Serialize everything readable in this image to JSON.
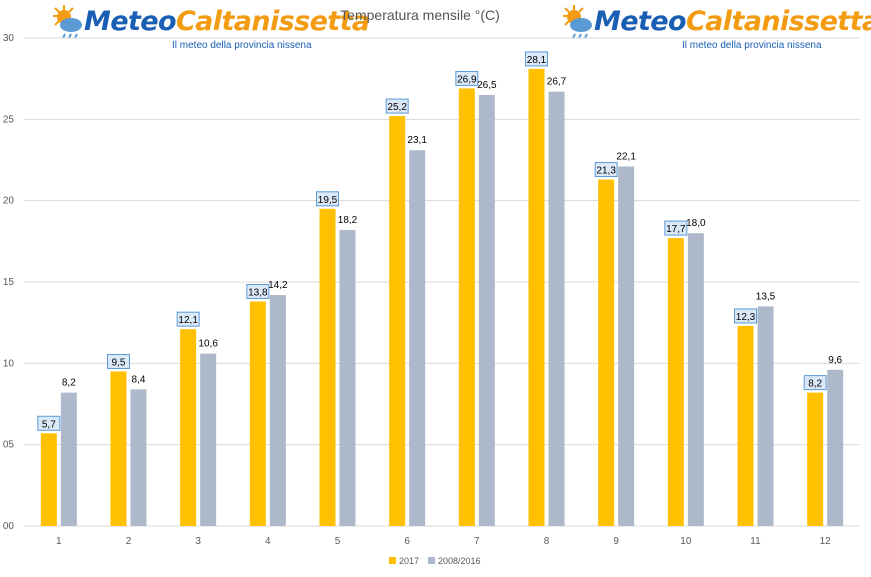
{
  "header": {
    "logo_name_part1": "Meteo",
    "logo_name_part2": "Caltanissetta",
    "logo_tagline": "Il meteo della provincia nissena",
    "logo_icon": "sun-cloud-icon"
  },
  "chart_data": {
    "type": "bar",
    "title": "Temperatura mensile °(C)",
    "xlabel": "",
    "ylabel": "",
    "categories": [
      "1",
      "2",
      "3",
      "4",
      "5",
      "6",
      "7",
      "8",
      "9",
      "10",
      "11",
      "12"
    ],
    "series": [
      {
        "name": "2017",
        "color": "#ffc000",
        "values": [
          5.7,
          9.5,
          12.1,
          13.8,
          19.5,
          25.2,
          26.9,
          28.1,
          21.3,
          17.7,
          12.3,
          8.2
        ],
        "labels": [
          "5,7",
          "9,5",
          "12,1",
          "13,8",
          "19,5",
          "25,2",
          "26,9",
          "28,1",
          "21,3",
          "17,7",
          "12,3",
          "8,2"
        ]
      },
      {
        "name": "2008/2016",
        "color": "#adb9ca",
        "values": [
          8.2,
          8.4,
          10.6,
          14.2,
          18.2,
          23.1,
          26.5,
          26.7,
          22.1,
          18.0,
          13.5,
          9.6
        ],
        "labels": [
          "8,2",
          "8,4",
          "10,6",
          "14,2",
          "18,2",
          "23,1",
          "26,5",
          "26,7",
          "22,1",
          "18,0",
          "13,5",
          "9,6"
        ]
      }
    ],
    "y_ticks": [
      "00",
      "05",
      "10",
      "15",
      "20",
      "25",
      "30"
    ],
    "ylim": [
      0,
      30
    ],
    "grid": true,
    "legend_position": "bottom-center"
  },
  "colors": {
    "grid": "#d9d9d9",
    "axis_text": "#595959",
    "label_box_fill": "#dbe8f7",
    "label_box_border": "#5b9bd5"
  }
}
